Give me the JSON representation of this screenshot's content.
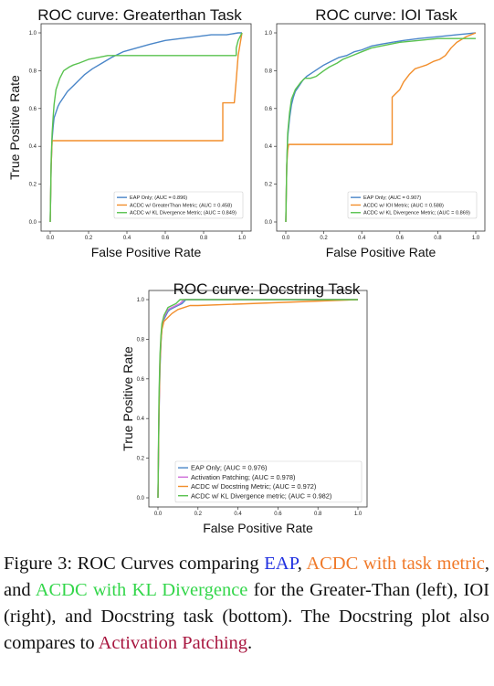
{
  "chart_data": [
    {
      "type": "line",
      "title": "ROC curve: Greaterthan Task",
      "xlabel": "False Positive Rate",
      "ylabel": "True Positive Rate",
      "xlim": [
        0,
        1
      ],
      "ylim": [
        0,
        1
      ],
      "xticks": [
        "0.0",
        "0.2",
        "0.4",
        "0.6",
        "0.8",
        "1.0"
      ],
      "yticks": [
        "0.0",
        "0.2",
        "0.4",
        "0.6",
        "0.8",
        "1.0"
      ],
      "legend_position": "bottom-right",
      "series": [
        {
          "name": "EAP Only; (AUC = 0.896)",
          "color": "#4a86c8",
          "x": [
            0,
            0.005,
            0.01,
            0.015,
            0.02,
            0.03,
            0.04,
            0.05,
            0.07,
            0.09,
            0.12,
            0.15,
            0.18,
            0.22,
            0.27,
            0.32,
            0.38,
            0.45,
            0.52,
            0.6,
            0.68,
            0.76,
            0.84,
            0.92,
            0.98,
            1.0
          ],
          "y": [
            0,
            0.3,
            0.44,
            0.5,
            0.55,
            0.58,
            0.61,
            0.63,
            0.66,
            0.69,
            0.72,
            0.75,
            0.78,
            0.81,
            0.84,
            0.87,
            0.9,
            0.92,
            0.94,
            0.96,
            0.97,
            0.98,
            0.99,
            0.99,
            1.0,
            1.0
          ]
        },
        {
          "name": "ACDC w/ GreaterThan Metric; (AUC = 0.458)",
          "color": "#f28e2b",
          "x": [
            0,
            0.005,
            0.01,
            0.9,
            0.9,
            0.96,
            0.97,
            0.98,
            1.0
          ],
          "y": [
            0,
            0.3,
            0.43,
            0.43,
            0.63,
            0.63,
            0.75,
            0.88,
            1.0
          ]
        },
        {
          "name": "ACDC w/ KL Divergence Metric; (AUC = 0.849)",
          "color": "#59c24f",
          "x": [
            0,
            0.005,
            0.01,
            0.015,
            0.02,
            0.03,
            0.05,
            0.07,
            0.1,
            0.12,
            0.15,
            0.2,
            0.25,
            0.3,
            0.97,
            0.97,
            0.98,
            1.0
          ],
          "y": [
            0,
            0.33,
            0.47,
            0.55,
            0.62,
            0.7,
            0.76,
            0.8,
            0.82,
            0.83,
            0.84,
            0.86,
            0.87,
            0.88,
            0.88,
            0.92,
            0.96,
            1.0
          ]
        }
      ]
    },
    {
      "type": "line",
      "title": "ROC curve: IOI Task",
      "xlabel": "False Positive Rate",
      "ylabel": "",
      "xlim": [
        0,
        1
      ],
      "ylim": [
        0,
        1
      ],
      "xticks": [
        "0.0",
        "0.2",
        "0.4",
        "0.6",
        "0.8",
        "1.0"
      ],
      "yticks": [
        "0.0",
        "0.2",
        "0.4",
        "0.6",
        "0.8",
        "1.0"
      ],
      "legend_position": "bottom-right",
      "series": [
        {
          "name": "EAP Only; (AUC = 0.907)",
          "color": "#4a86c8",
          "x": [
            0,
            0.005,
            0.01,
            0.02,
            0.03,
            0.04,
            0.05,
            0.07,
            0.09,
            0.11,
            0.14,
            0.17,
            0.2,
            0.24,
            0.28,
            0.32,
            0.36,
            0.4,
            0.45,
            0.5,
            0.56,
            0.62,
            0.7,
            0.8,
            0.9,
            1.0
          ],
          "y": [
            0,
            0.3,
            0.45,
            0.55,
            0.62,
            0.66,
            0.69,
            0.72,
            0.75,
            0.77,
            0.79,
            0.81,
            0.83,
            0.85,
            0.87,
            0.88,
            0.9,
            0.91,
            0.93,
            0.94,
            0.95,
            0.96,
            0.97,
            0.98,
            0.99,
            1.0
          ]
        },
        {
          "name": "ACDC w/ IOI Metric; (AUC = 0.588)",
          "color": "#f28e2b",
          "x": [
            0,
            0.005,
            0.01,
            0.015,
            0.56,
            0.56,
            0.6,
            0.62,
            0.65,
            0.68,
            0.71,
            0.74,
            0.78,
            0.81,
            0.84,
            0.87,
            0.9,
            0.95,
            1.0
          ],
          "y": [
            0,
            0.3,
            0.38,
            0.41,
            0.41,
            0.66,
            0.7,
            0.74,
            0.78,
            0.81,
            0.82,
            0.83,
            0.85,
            0.86,
            0.88,
            0.92,
            0.95,
            0.98,
            1.0
          ]
        },
        {
          "name": "ACDC w/ KL Divergence Metric; (AUC = 0.869)",
          "color": "#59c24f",
          "x": [
            0,
            0.005,
            0.01,
            0.02,
            0.03,
            0.05,
            0.08,
            0.1,
            0.13,
            0.16,
            0.2,
            0.23,
            0.27,
            0.3,
            0.35,
            0.4,
            0.45,
            0.5,
            0.6,
            0.7,
            0.8,
            0.9,
            1.0
          ],
          "y": [
            0,
            0.3,
            0.47,
            0.58,
            0.65,
            0.7,
            0.74,
            0.76,
            0.76,
            0.77,
            0.8,
            0.82,
            0.84,
            0.86,
            0.88,
            0.9,
            0.92,
            0.93,
            0.95,
            0.96,
            0.97,
            0.97,
            0.97
          ]
        }
      ]
    },
    {
      "type": "line",
      "title": "ROC curve: Docstring Task",
      "xlabel": "False Positive Rate",
      "ylabel": "True Positive Rate",
      "xlim": [
        0,
        1
      ],
      "ylim": [
        0,
        1
      ],
      "xticks": [
        "0.0",
        "0.2",
        "0.4",
        "0.6",
        "0.8",
        "1.0"
      ],
      "yticks": [
        "0.0",
        "0.2",
        "0.4",
        "0.6",
        "0.8",
        "1.0"
      ],
      "legend_position": "bottom-right",
      "series": [
        {
          "name": "EAP Only; (AUC = 0.976)",
          "color": "#4a86c8",
          "x": [
            0,
            0.005,
            0.01,
            0.015,
            0.02,
            0.03,
            0.04,
            0.05,
            0.06,
            0.08,
            0.1,
            0.12,
            0.14,
            1.0
          ],
          "y": [
            0,
            0.4,
            0.65,
            0.78,
            0.86,
            0.9,
            0.92,
            0.94,
            0.95,
            0.96,
            0.97,
            0.98,
            1.0,
            1.0
          ]
        },
        {
          "name": "Activation Patching; (AUC = 0.978)",
          "color": "#cf6fd9",
          "x": [
            0,
            0.005,
            0.01,
            0.015,
            0.02,
            0.03,
            0.04,
            0.05,
            0.07,
            0.09,
            0.11,
            0.13,
            1.0
          ],
          "y": [
            0,
            0.45,
            0.7,
            0.8,
            0.87,
            0.91,
            0.93,
            0.95,
            0.96,
            0.97,
            0.98,
            1.0,
            1.0
          ]
        },
        {
          "name": "ACDC w/ Docstring Metric; (AUC = 0.972)",
          "color": "#f28e2b",
          "x": [
            0,
            0.005,
            0.01,
            0.015,
            0.02,
            0.03,
            0.05,
            0.07,
            0.1,
            0.13,
            0.16,
            0.2,
            1.0
          ],
          "y": [
            0,
            0.42,
            0.68,
            0.79,
            0.85,
            0.89,
            0.91,
            0.93,
            0.95,
            0.96,
            0.97,
            0.97,
            1.0
          ]
        },
        {
          "name": "ACDC w/ KL Divergence metric; (AUC = 0.982)",
          "color": "#59c24f",
          "x": [
            0,
            0.005,
            0.01,
            0.015,
            0.02,
            0.03,
            0.04,
            0.05,
            0.07,
            0.09,
            0.11,
            1.0
          ],
          "y": [
            0,
            0.5,
            0.72,
            0.82,
            0.88,
            0.92,
            0.94,
            0.96,
            0.97,
            0.98,
            1.0,
            1.0
          ]
        }
      ]
    }
  ],
  "caption": {
    "prefix": "Figure 3: ROC Curves comparing ",
    "eap": "EAP",
    "sep1": ", ",
    "acdc_task": "ACDC with task metric",
    "sep2": ", and ",
    "acdc_kl": "ACDC with KL Divergence",
    "middle": " for the Greater-Than (left), IOI (right), and Docstring task (bottom). The Docstring plot also compares to ",
    "activation": "Activation Patching",
    "end": "."
  },
  "colors": {
    "eap": "#2030e0",
    "acdc_task": "#f07a2a",
    "acdc_kl": "#33d64a",
    "activation": "#a8163f"
  }
}
